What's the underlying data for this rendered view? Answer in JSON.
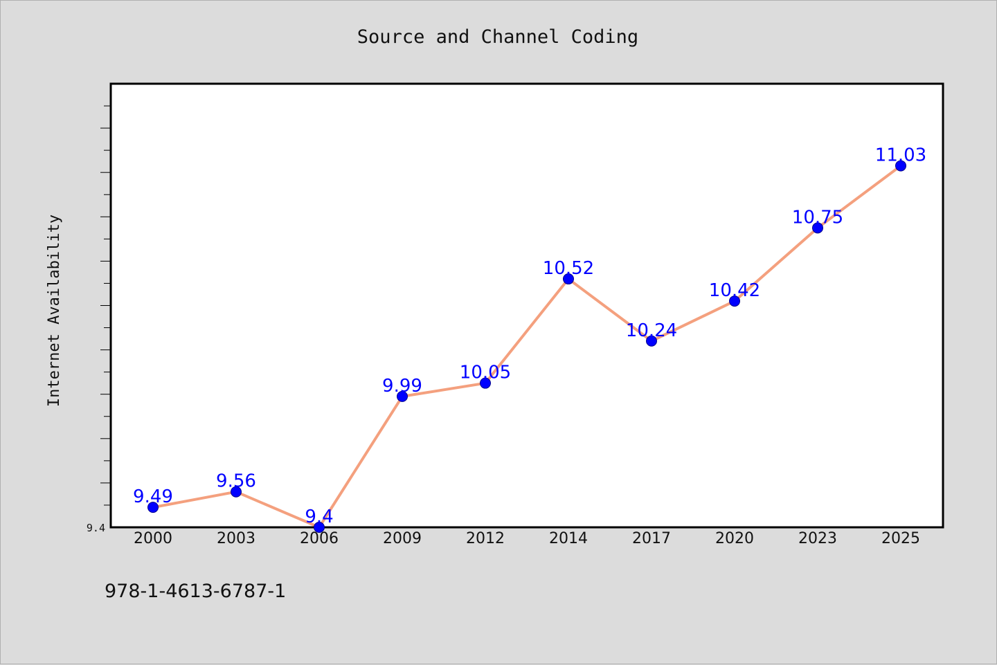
{
  "chart_data": {
    "type": "line",
    "title": "Source and Channel Coding",
    "xlabel": "",
    "ylabel": "Internet Availability",
    "categories": [
      "2000",
      "2003",
      "2006",
      "2009",
      "2012",
      "2014",
      "2017",
      "2020",
      "2023",
      "2025"
    ],
    "series": [
      {
        "values": [
          9.49,
          9.56,
          9.4,
          9.99,
          10.05,
          10.52,
          10.24,
          10.42,
          10.75,
          11.03
        ],
        "data_labels": [
          "9.49",
          "9.56",
          "9.4",
          "9.99",
          "10.05",
          "10.52",
          "10.24",
          "10.42",
          "10.75",
          "11.03"
        ]
      }
    ],
    "y_tick_labels": [
      "9.4"
    ],
    "ylim": [
      9.4,
      11.4
    ],
    "grid": false,
    "colors": {
      "line": "#f4a07e",
      "marker": "#0000ff",
      "marker_edge": "#00008b",
      "data_label": "#0000ff",
      "plot_background": "#ffffff",
      "page_background": "#dcdcdc"
    }
  },
  "footnote": "978-1-4613-6787-1"
}
